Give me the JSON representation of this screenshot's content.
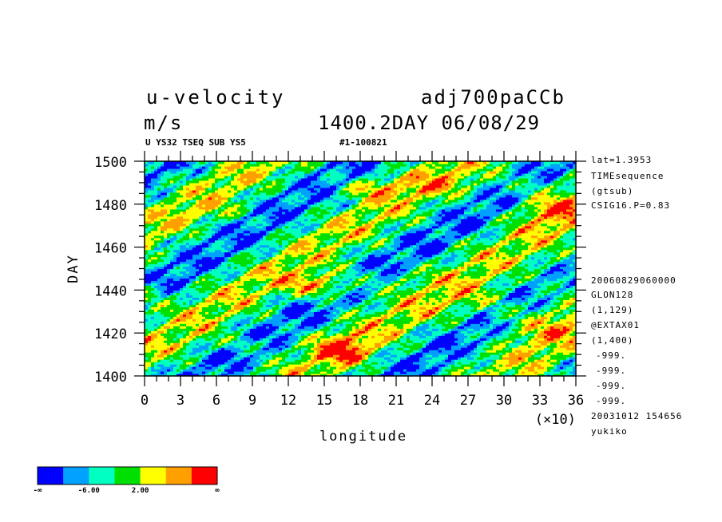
{
  "header": {
    "title_left": "u-velocity",
    "title_right": "adj700paCCb",
    "units": "m/s",
    "datetime": "1400.2DAY 06/08/29",
    "sub_left": "U YS32 TSEQ SUB YS5",
    "sub_right": "#1-100821"
  },
  "side_top": [
    "lat=1.3953",
    "TIMEsequence",
    "(gtsub)",
    "CSIG16.P=0.83"
  ],
  "side_bottom": [
    "20060829060000",
    "GLON128",
    "(1,129)",
    "@EXTAX01",
    "(1,400)",
    "-999.",
    "-999.",
    "-999.",
    "-999.",
    "20031012 154656",
    "yukiko"
  ],
  "chart_data": {
    "type": "heatmap",
    "title": "u-velocity",
    "xlabel": "longitude",
    "x_multiplier": "(×10)",
    "ylabel": "DAY",
    "xlim": [
      0,
      36
    ],
    "ylim": [
      1400,
      1500
    ],
    "x_ticks": [
      "0",
      "3",
      "6",
      "9",
      "12",
      "15",
      "18",
      "21",
      "24",
      "27",
      "30",
      "33",
      "36"
    ],
    "y_ticks": [
      "1400",
      "1420",
      "1440",
      "1460",
      "1480",
      "1500"
    ],
    "units": "m/s",
    "colorbar": {
      "colors": [
        "#0000ff",
        "#00a0ff",
        "#00ffc0",
        "#00e000",
        "#ffff00",
        "#ffa000",
        "#ff0000"
      ],
      "labels": [
        "-∞",
        "-6.00",
        "2.00",
        "∞"
      ]
    }
  }
}
